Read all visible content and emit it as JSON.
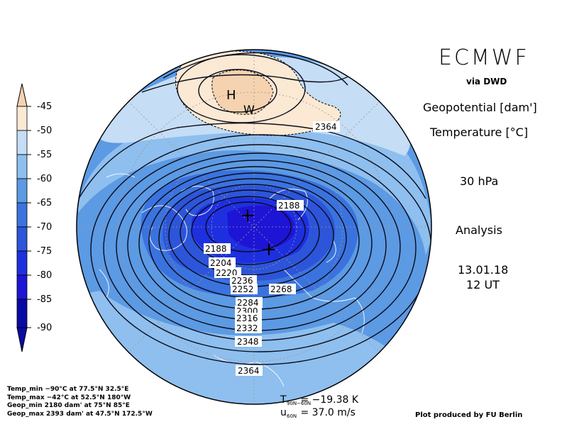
{
  "header": {
    "brand": "ECMWF",
    "via": "via DWD",
    "variable_1": "Geopotential [dam']",
    "variable_2": "Temperature [°C]",
    "level": "30 hPa",
    "kind": "Analysis",
    "date": "13.01.18",
    "time": "12 UT"
  },
  "colorbar": {
    "labels": [
      "-45",
      "-50",
      "-55",
      "-60",
      "-65",
      "-70",
      "-75",
      "-80",
      "-85",
      "-90"
    ],
    "colors": [
      "#f5d3b0",
      "#fbe9d4",
      "#c5ddf5",
      "#8ebfee",
      "#5c9ae3",
      "#3b73de",
      "#2d55d9",
      "#1e2fe0",
      "#1e14d5",
      "#0a0aa5"
    ]
  },
  "map": {
    "high_symbol": "H",
    "warm_symbol": "W",
    "low_symbol": "+",
    "geopotential_labels": [
      "2364",
      "2188",
      "2188",
      "2204",
      "2220",
      "2236",
      "2252",
      "2268",
      "2284",
      "2300",
      "2316",
      "2332",
      "2348",
      "2364"
    ]
  },
  "stats": {
    "temp_min": "Temp_min −90°C at 77.5°N 32.5°E",
    "temp_max": "Temp_max −42°C at 52.5°N 180°W",
    "geop_min": "Geop_min 2180 dam' at 75°N 85°E",
    "geop_max": "Geop_max 2393 dam' at 47.5°N 172.5°W"
  },
  "means": {
    "t_symbol": "T",
    "t_sub": "90N−60N",
    "t_value": "= −19.38 K",
    "u_symbol": "u",
    "u_sub": "60N",
    "u_value": "= 37.0 m/s"
  },
  "credit": "Plot produced by FU Berlin"
}
